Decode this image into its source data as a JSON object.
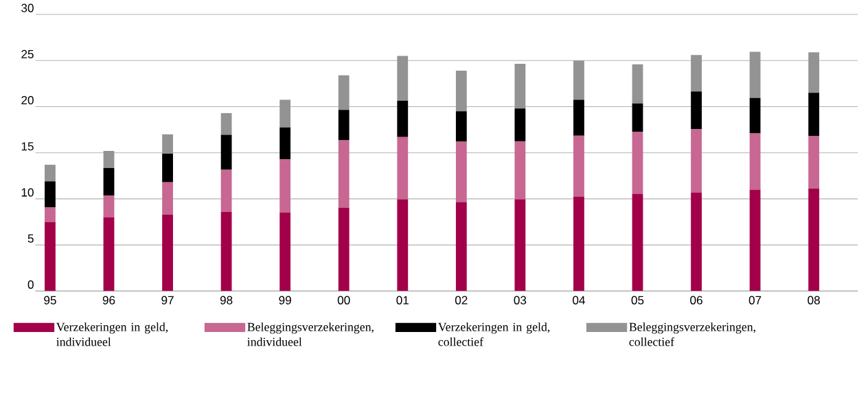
{
  "chart_data": {
    "type": "bar",
    "stacked": true,
    "categories": [
      "95",
      "96",
      "97",
      "98",
      "99",
      "00",
      "01",
      "02",
      "03",
      "04",
      "05",
      "06",
      "07",
      "08"
    ],
    "series": [
      {
        "name": "Verzekeringen in geld, individueel",
        "color": "#a3004a",
        "values": [
          7.5,
          8.0,
          8.3,
          8.6,
          8.5,
          9.05,
          9.95,
          9.65,
          9.95,
          10.25,
          10.55,
          10.7,
          11.0,
          11.1
        ]
      },
      {
        "name": "Beleggingsverzekeringen, individueel",
        "color": "#c76792",
        "values": [
          1.6,
          2.35,
          3.5,
          4.55,
          5.8,
          7.3,
          6.75,
          6.55,
          6.3,
          6.6,
          6.7,
          6.85,
          6.1,
          5.7
        ]
      },
      {
        "name": "Verzekeringen in geld, collectief",
        "color": "#000000",
        "values": [
          2.8,
          3.0,
          3.1,
          3.8,
          3.45,
          3.3,
          3.95,
          3.3,
          3.55,
          3.9,
          3.1,
          4.1,
          3.85,
          4.7
        ]
      },
      {
        "name": "Beleggingsverzekeringen, collectief",
        "color": "#939393",
        "values": [
          1.8,
          1.85,
          2.1,
          2.35,
          3.0,
          3.75,
          4.85,
          4.4,
          4.85,
          4.25,
          4.25,
          3.95,
          5.0,
          4.4
        ]
      }
    ],
    "ylim": [
      0,
      30
    ],
    "yticks": [
      0,
      5,
      10,
      15,
      20,
      25,
      30
    ],
    "grid": "y",
    "legend": "bottom"
  }
}
